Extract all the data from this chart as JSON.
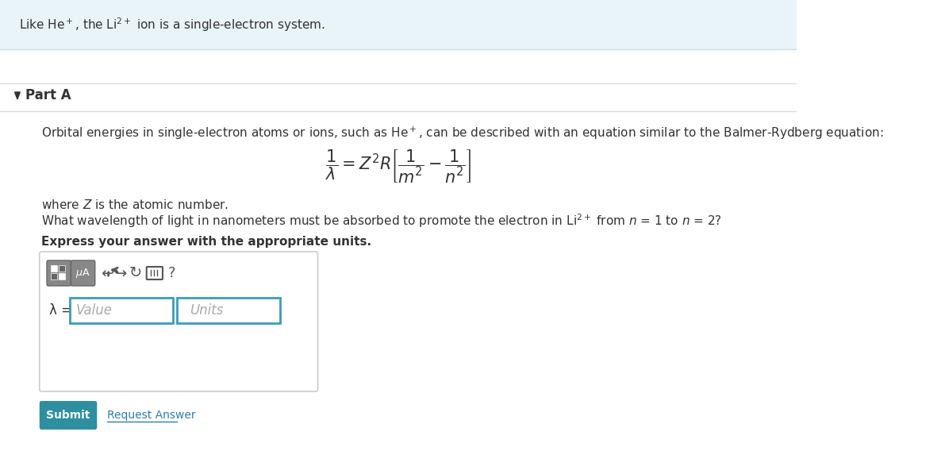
{
  "bg_color": "#ffffff",
  "header_bg": "#e8f4f8",
  "header_text": "Like He⁺, the Li²⁺ ion is a single-electron system.",
  "part_label": "Part A",
  "description": "Orbital energies in single-electron atoms or ions, such as He⁺, can be described with an equation similar to the Balmer-Rydberg equation:",
  "where_text": "where Z is the atomic number.",
  "question_text": "What wavelength of light in nanometers must be absorbed to promote the electron in Li²⁺ from n = 1 to n = 2?",
  "bold_text": "Express your answer with the appropriate units.",
  "value_placeholder": "Value",
  "units_placeholder": "Units",
  "lambda_label": "λ =",
  "submit_text": "Submit",
  "request_answer_text": "Request Answer",
  "submit_bg": "#2d8fa0",
  "submit_text_color": "#ffffff",
  "request_answer_color": "#2d7db5",
  "border_color": "#cccccc",
  "input_border_color": "#3a9bbd",
  "toolbar_bg": "#888888",
  "section_divider_color": "#dddddd",
  "font_size_header": 11,
  "font_size_body": 11,
  "font_size_part": 12
}
